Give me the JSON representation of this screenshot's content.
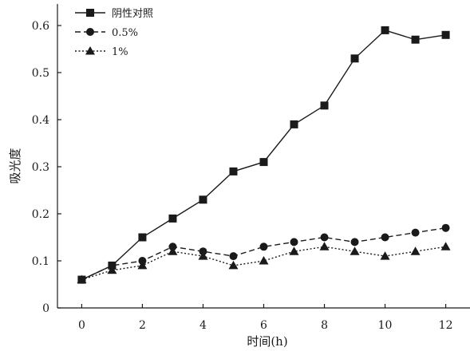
{
  "chart_data": {
    "type": "line",
    "title": "",
    "xlabel": "时间(h)",
    "ylabel": "吸光度",
    "xlim": [
      -0.8,
      12.8
    ],
    "ylim": [
      0,
      0.6
    ],
    "x_ticks": [
      0,
      2,
      4,
      6,
      8,
      10,
      12
    ],
    "x_tick_labels": [
      "0",
      "2",
      "4",
      "6",
      "8",
      "10",
      "12"
    ],
    "y_ticks": [
      0,
      0.1,
      0.2,
      0.3,
      0.4,
      0.5,
      0.6
    ],
    "y_tick_labels": [
      "0",
      "0.1",
      "0.2",
      "0.3",
      "0.4",
      "0.5",
      "0.6"
    ],
    "grid": false,
    "legend_position": "top-left",
    "x": [
      0,
      1,
      2,
      3,
      4,
      5,
      6,
      7,
      8,
      9,
      10,
      11,
      12
    ],
    "series": [
      {
        "name": "阴性对照",
        "marker": "square",
        "line_style": "solid",
        "color": "#1a1a1a",
        "values": [
          0.06,
          0.09,
          0.15,
          0.19,
          0.23,
          0.29,
          0.31,
          0.39,
          0.43,
          0.53,
          0.59,
          0.57,
          0.58
        ]
      },
      {
        "name": "0.5%",
        "marker": "circle",
        "line_style": "dashed",
        "color": "#1a1a1a",
        "values": [
          0.06,
          0.09,
          0.1,
          0.13,
          0.12,
          0.11,
          0.13,
          0.14,
          0.15,
          0.14,
          0.15,
          0.16,
          0.17
        ]
      },
      {
        "name": "1%",
        "marker": "triangle",
        "line_style": "dotted",
        "color": "#1a1a1a",
        "values": [
          0.06,
          0.08,
          0.09,
          0.12,
          0.11,
          0.09,
          0.1,
          0.12,
          0.13,
          0.12,
          0.11,
          0.12,
          0.13
        ]
      }
    ]
  }
}
